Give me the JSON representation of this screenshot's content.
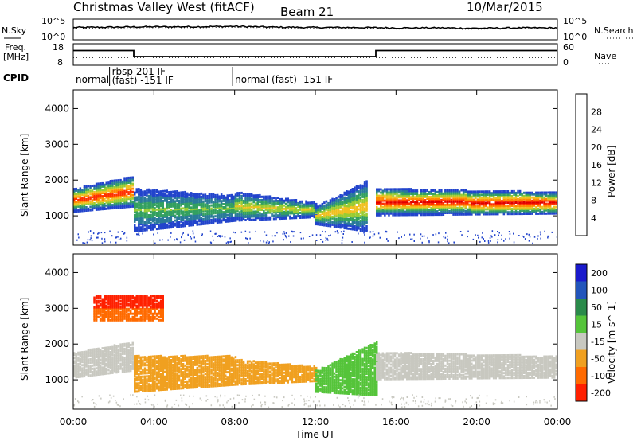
{
  "header": {
    "title": "Christmas Valley West (fitACF)",
    "beam": "Beam 21",
    "date": "10/Mar/2015"
  },
  "noise_panel": {
    "left_label": "N.Sky",
    "left_ticks": [
      "10^5",
      "10^0"
    ],
    "right_ticks": [
      "10^5",
      "10^0"
    ],
    "right_label": "N.Search"
  },
  "freq_panel": {
    "left_label_1": "Freq.",
    "left_label_2": "[MHz]",
    "left_ticks": [
      "18",
      "8"
    ],
    "right_ticks": [
      "60",
      "0"
    ],
    "right_label": "Nave"
  },
  "cpid": {
    "label": "CPID",
    "segments": [
      {
        "start_hour": 0.0,
        "end_hour": 1.8,
        "lines": [
          "normal"
        ]
      },
      {
        "start_hour": 1.8,
        "end_hour": 7.9,
        "lines": [
          "rbsp 201 IF",
          "(fast) -151 IF"
        ]
      },
      {
        "start_hour": 7.9,
        "end_hour": 24.0,
        "lines": [
          "normal (fast) -151 IF"
        ]
      }
    ]
  },
  "power_panel": {
    "ylabel": "Slant Range [km]",
    "yticks": [
      "1000",
      "2000",
      "3000",
      "4000"
    ],
    "colorbar_label": "Power [dB]",
    "colorbar_ticks": [
      "4",
      "8",
      "12",
      "16",
      "20",
      "24",
      "28"
    ]
  },
  "velocity_panel": {
    "ylabel": "Slant Range [km]",
    "yticks": [
      "1000",
      "2000",
      "3000",
      "4000"
    ],
    "colorbar_label": "Velocity [m s^-1]",
    "colorbar_ticks": [
      "200",
      "100",
      "50",
      "15",
      "-15",
      "-50",
      "-100",
      "-200"
    ]
  },
  "xaxis": {
    "label": "Time UT",
    "ticks": [
      "00:00",
      "04:00",
      "08:00",
      "12:00",
      "16:00",
      "20:00",
      "00:00"
    ]
  },
  "colors": {
    "power": [
      "#1a1aff",
      "#2244cc",
      "#2a7a9a",
      "#33a060",
      "#99cc33",
      "#f0c020",
      "#ff8a00",
      "#ff3000",
      "#e00000"
    ],
    "velocity": [
      "#1a1acc",
      "#2255bb",
      "#2a8a4a",
      "#55c43a",
      "#c8c8c0",
      "#f0a020",
      "#ff6a00",
      "#ff2000"
    ],
    "ground_scatter": "#c8c8c0"
  },
  "chart_data": [
    {
      "type": "line",
      "x_unit": "hours UT",
      "x": [
        0,
        2,
        4,
        6,
        8,
        10,
        12,
        14,
        16,
        18,
        20,
        22,
        24
      ],
      "y_range": [
        0,
        5
      ],
      "y_scale": "log10",
      "series": [
        {
          "values": [
            3.0,
            3.1,
            3.2,
            3.2,
            3.3,
            3.1,
            3.0,
            3.0,
            2.9,
            2.9,
            2.8,
            2.9,
            2.9
          ]
        }
      ]
    },
    {
      "type": "line",
      "x_unit": "hours UT",
      "y_range": [
        8,
        18
      ],
      "series": [
        {
          "x": [
            0,
            3,
            3,
            15,
            15,
            24
          ],
          "values": [
            15,
            15,
            12,
            12,
            15,
            15
          ]
        }
      ]
    },
    {
      "type": "heatmap",
      "x_unit": "hours UT",
      "xlim": [
        0,
        24
      ],
      "ylim": [
        200,
        4500
      ],
      "ylabel": "Slant Range [km]",
      "zlabel": "Power [dB]",
      "zlim": [
        0,
        30
      ],
      "bands": [
        {
          "t0": 0.0,
          "t1": 3.0,
          "r_low": [
            1150,
            1300
          ],
          "r_high": [
            1800,
            2150
          ],
          "peak_db": 26
        },
        {
          "t0": 3.0,
          "t1": 8.0,
          "r_low": [
            600,
            900
          ],
          "r_high": [
            1800,
            1600
          ],
          "peak_db": 12
        },
        {
          "t0": 8.0,
          "t1": 12.0,
          "r_low": [
            900,
            1000
          ],
          "r_high": [
            1700,
            1400
          ],
          "peak_db": 16
        },
        {
          "t0": 12.0,
          "t1": 14.5,
          "r_low": [
            800,
            600
          ],
          "r_high": [
            1300,
            2000
          ],
          "peak_db": 18
        },
        {
          "t0": 15.0,
          "t1": 24.0,
          "r_low": [
            1050,
            1100
          ],
          "r_high": [
            1800,
            1700
          ],
          "peak_db": 28
        }
      ]
    },
    {
      "type": "heatmap",
      "x_unit": "hours UT",
      "xlim": [
        0,
        24
      ],
      "ylim": [
        200,
        4500
      ],
      "ylabel": "Slant Range [km]",
      "zlabel": "Velocity [m s^-1]",
      "zlim": [
        -200,
        200
      ],
      "bands": [
        {
          "t0": 0.0,
          "t1": 3.0,
          "r_low": [
            1100,
            1300
          ],
          "r_high": [
            1800,
            2100
          ],
          "velocity": 0
        },
        {
          "t0": 3.0,
          "t1": 8.0,
          "r_low": [
            700,
            900
          ],
          "r_high": [
            1700,
            1700
          ],
          "velocity": -40
        },
        {
          "t0": 8.0,
          "t1": 12.0,
          "r_low": [
            900,
            1000
          ],
          "r_high": [
            1600,
            1400
          ],
          "velocity": -40
        },
        {
          "t0": 12.0,
          "t1": 15.0,
          "r_low": [
            700,
            600
          ],
          "r_high": [
            1300,
            2100
          ],
          "velocity": 30
        },
        {
          "t0": 15.0,
          "t1": 24.0,
          "r_low": [
            1050,
            1100
          ],
          "r_high": [
            1800,
            1700
          ],
          "velocity": 0
        },
        {
          "t0": 1.0,
          "t1": 4.5,
          "r_low": [
            2700,
            2700
          ],
          "r_high": [
            3400,
            3400
          ],
          "velocity": -120
        }
      ]
    }
  ]
}
